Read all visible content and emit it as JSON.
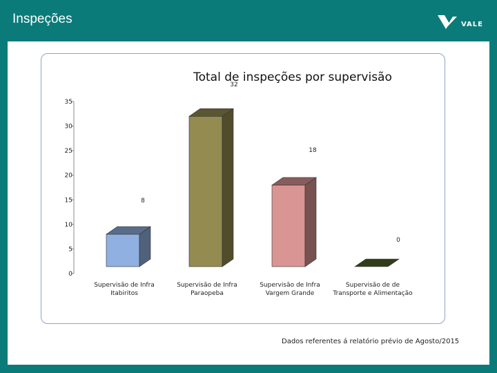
{
  "header": {
    "title": "Inspeções"
  },
  "logo": {
    "text": "VALE",
    "icon": "vale-logo-icon"
  },
  "footnote": "Dados referentes á relatório prévio de Agosto/2015",
  "chart_data": {
    "type": "bar",
    "title": "Total de inspeções por supervisão",
    "xlabel": "",
    "ylabel": "",
    "ylim": [
      0,
      35
    ],
    "yticks": [
      0,
      5,
      10,
      15,
      20,
      25,
      30,
      35
    ],
    "grid": false,
    "three_d": true,
    "categories": [
      [
        "Supervisão de Infra",
        "Itabiritos"
      ],
      [
        "Supervisão de Infra",
        "Paraopeba"
      ],
      [
        "Supervisão de Infra",
        "Vargem Grande"
      ],
      [
        "Supervisão de de",
        "Transporte e Alimentação"
      ]
    ],
    "values": [
      8,
      32,
      18,
      0
    ],
    "data_labels": [
      "8",
      "32",
      "18",
      "0"
    ],
    "colors": [
      "#8fb0e0",
      "#938b50",
      "#d99594",
      "#4f6228"
    ]
  }
}
